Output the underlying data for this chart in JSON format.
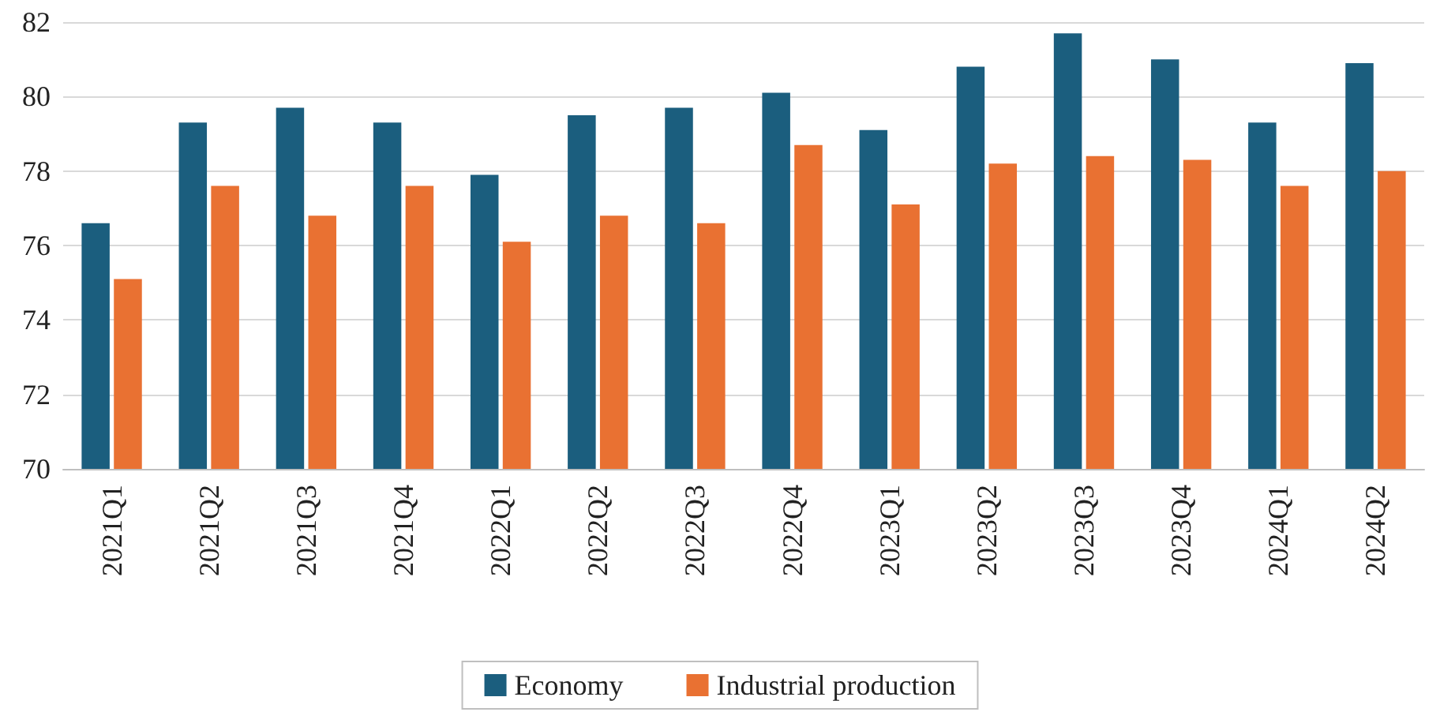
{
  "chart_data": {
    "type": "bar",
    "categories": [
      "2021Q1",
      "2021Q2",
      "2021Q3",
      "2021Q4",
      "2022Q1",
      "2022Q2",
      "2022Q3",
      "2022Q4",
      "2023Q1",
      "2023Q2",
      "2023Q3",
      "2023Q4",
      "2024Q1",
      "2024Q2"
    ],
    "series": [
      {
        "name": "Economy",
        "color": "#1b5e7e",
        "values": [
          76.6,
          79.3,
          79.7,
          79.3,
          77.9,
          79.5,
          79.7,
          80.1,
          79.1,
          80.8,
          81.7,
          81.0,
          79.3,
          80.9
        ]
      },
      {
        "name": "Industrial production",
        "color": "#e97132",
        "values": [
          75.1,
          77.6,
          76.8,
          77.6,
          76.1,
          76.8,
          76.6,
          78.7,
          77.1,
          78.2,
          78.4,
          78.3,
          77.6,
          78.0
        ]
      }
    ],
    "ylim": [
      70,
      82
    ],
    "yticks": [
      70,
      72,
      74,
      76,
      78,
      80,
      82
    ],
    "grid": "y",
    "legend": "bottom"
  }
}
